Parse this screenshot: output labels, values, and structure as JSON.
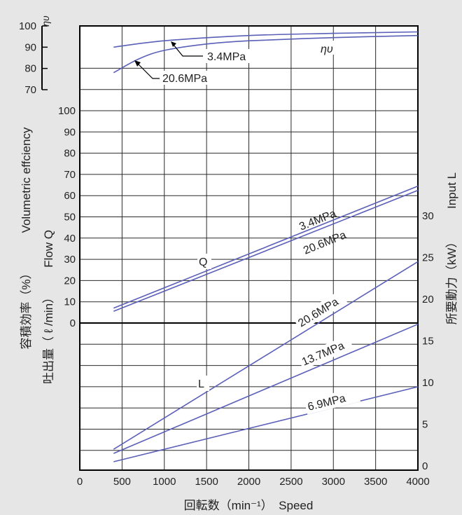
{
  "chart_data": {
    "type": "line",
    "x_axis": {
      "label": "回転数（min⁻¹）　Speed",
      "range": [
        0,
        4000
      ],
      "ticks": [
        "0",
        "500",
        "1000",
        "1500",
        "2000",
        "2500",
        "3000",
        "3500",
        "4000"
      ]
    },
    "eta_axis": {
      "symbol": "ηυ",
      "range": [
        70,
        100
      ],
      "ticks": [
        "100",
        "90",
        "80",
        "70"
      ]
    },
    "left_axis": {
      "label_jp": "容積効率（%）",
      "label_en": "Volumetric effciency",
      "flow_label_jp": "吐出量（ ℓ /min）",
      "flow_label_en": "Flow Q",
      "range": [
        0,
        100
      ],
      "ticks": [
        "100",
        "90",
        "80",
        "70",
        "60",
        "50",
        "40",
        "30",
        "20",
        "10",
        "0"
      ]
    },
    "right_axis": {
      "label_jp": "所要動力（kW）",
      "label_en": "Input L",
      "range": [
        0,
        35
      ],
      "ticks": [
        "0",
        "5",
        "10",
        "15",
        "20",
        "25",
        "30"
      ]
    },
    "grid": true,
    "groups": [
      {
        "name": "ηυ",
        "axis": "eta",
        "series": [
          {
            "name": "3.4MPa",
            "x": [
              400,
              1000,
              2000,
              3000,
              4000
            ],
            "y": [
              90,
              93,
              95.5,
              96.5,
              97.2
            ]
          },
          {
            "name": "20.6MPa",
            "x": [
              400,
              700,
              1000,
              1500,
              2000,
              3000,
              4000
            ],
            "y": [
              78,
              84.5,
              88.5,
              91.5,
              93,
              94.5,
              95.5
            ]
          }
        ]
      },
      {
        "name": "Q",
        "axis": "flow",
        "series": [
          {
            "name": "3.4MPa",
            "x": [
              400,
              4000
            ],
            "y": [
              7,
              64.5
            ]
          },
          {
            "name": "20.6MPa",
            "x": [
              400,
              4000
            ],
            "y": [
              5.5,
              62.5
            ]
          }
        ]
      },
      {
        "name": "L",
        "axis": "input",
        "series": [
          {
            "name": "20.6MPa",
            "x": [
              400,
              4000
            ],
            "y": [
              2,
              24.5
            ]
          },
          {
            "name": "13.7MPa",
            "x": [
              400,
              4000
            ],
            "y": [
              1.5,
              17
            ]
          },
          {
            "name": "6.9MPa",
            "x": [
              400,
              4000
            ],
            "y": [
              0.5,
              9.5
            ]
          }
        ]
      }
    ]
  },
  "colors": {
    "curve": "#5a5fb8",
    "grid": "#2a2a2a",
    "plot_bg": "#ffffff",
    "page_bg": "#e6e6e6"
  }
}
